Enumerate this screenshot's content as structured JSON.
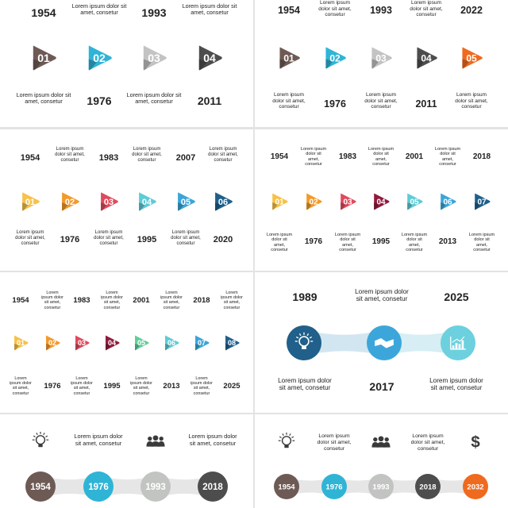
{
  "lorem": "Lorem ipsum dolor sit amet, consetur",
  "colors": {
    "brown": "#6e5a55",
    "cyan": "#2fb4d6",
    "silver": "#c2c4c2",
    "charcoal": "#4d4d4d",
    "orange": "#ef6a1e",
    "yellow": "#f7c14a",
    "amber": "#f39a2b",
    "crimson": "#e04a5c",
    "teal": "#5fcbd6",
    "sky": "#3ba5d8",
    "navy": "#1f5f8b",
    "maroon": "#8e1b3d",
    "green": "#5fcf9a",
    "navy_circle": "#20608a",
    "cyan_circle": "#3ca6db",
    "ice_circle": "#6dd0de"
  },
  "panels": [
    {
      "id": "p1",
      "type": "arrows",
      "count": 4,
      "items": [
        {
          "label": "01",
          "year": "1954",
          "color": "#6e5a55"
        },
        {
          "label": "02",
          "year": "1976",
          "color": "#2fb4d6"
        },
        {
          "label": "03",
          "year": "1993",
          "color": "#c2c4c2"
        },
        {
          "label": "04",
          "year": "2011",
          "color": "#4d4d4d"
        }
      ]
    },
    {
      "id": "p2",
      "type": "arrows",
      "count": 5,
      "items": [
        {
          "label": "01",
          "year": "1954",
          "color": "#6e5a55"
        },
        {
          "label": "02",
          "year": "1976",
          "color": "#2fb4d6"
        },
        {
          "label": "03",
          "year": "1993",
          "color": "#c2c4c2"
        },
        {
          "label": "04",
          "year": "2011",
          "color": "#4d4d4d"
        },
        {
          "label": "05",
          "year": "2022",
          "color": "#ef6a1e"
        }
      ]
    },
    {
      "id": "p3",
      "type": "arrows",
      "count": 6,
      "items": [
        {
          "label": "01",
          "year": "1954",
          "color": "#f7c14a"
        },
        {
          "label": "02",
          "year": "1976",
          "color": "#f39a2b"
        },
        {
          "label": "03",
          "year": "1983",
          "color": "#e04a5c"
        },
        {
          "label": "04",
          "year": "1995",
          "color": "#5fcbd6"
        },
        {
          "label": "05",
          "year": "2007",
          "color": "#3ba5d8"
        },
        {
          "label": "06",
          "year": "2020",
          "color": "#1f5f8b"
        }
      ]
    },
    {
      "id": "p4",
      "type": "arrows",
      "count": 7,
      "items": [
        {
          "label": "01",
          "year": "1954",
          "color": "#f7c14a"
        },
        {
          "label": "02",
          "year": "1976",
          "color": "#f39a2b"
        },
        {
          "label": "03",
          "year": "1983",
          "color": "#e04a5c"
        },
        {
          "label": "04",
          "year": "1995",
          "color": "#8e1b3d"
        },
        {
          "label": "05",
          "year": "2001",
          "color": "#5fcbd6"
        },
        {
          "label": "06",
          "year": "2013",
          "color": "#3ba5d8"
        },
        {
          "label": "07",
          "year": "2018",
          "color": "#1f5f8b"
        }
      ]
    },
    {
      "id": "p5",
      "type": "arrows",
      "count": 8,
      "items": [
        {
          "label": "01",
          "year": "1954",
          "color": "#f7c14a"
        },
        {
          "label": "02",
          "year": "1976",
          "color": "#f39a2b"
        },
        {
          "label": "03",
          "year": "1983",
          "color": "#e04a5c"
        },
        {
          "label": "04",
          "year": "1995",
          "color": "#8e1b3d"
        },
        {
          "label": "05",
          "year": "2001",
          "color": "#5fcf9a"
        },
        {
          "label": "06",
          "year": "2013",
          "color": "#5fcbd6"
        },
        {
          "label": "07",
          "year": "2018",
          "color": "#3ba5d8"
        },
        {
          "label": "08",
          "year": "2025",
          "color": "#1f5f8b"
        }
      ]
    },
    {
      "id": "p6",
      "type": "circles-icons",
      "items": [
        {
          "year": "1989",
          "icon": "lightbulb-icon",
          "color": "#20608a"
        },
        {
          "year": "2017",
          "icon": "handshake-icon",
          "color": "#3ca6db"
        },
        {
          "year": "2025",
          "icon": "bar-chart-icon",
          "color": "#6dd0de"
        }
      ]
    },
    {
      "id": "p7",
      "type": "circles-years",
      "items": [
        {
          "year": "1954",
          "color": "#6e5a55",
          "icon": "lightbulb-icon"
        },
        {
          "year": "1976",
          "color": "#2fb4d6",
          "icon": ""
        },
        {
          "year": "1993",
          "color": "#c2c4c2",
          "icon": "users-icon"
        },
        {
          "year": "2018",
          "color": "#4d4d4d",
          "icon": ""
        }
      ]
    },
    {
      "id": "p8",
      "type": "circles-years",
      "items": [
        {
          "year": "1954",
          "color": "#6e5a55",
          "icon": "lightbulb-icon"
        },
        {
          "year": "1976",
          "color": "#2fb4d6",
          "icon": ""
        },
        {
          "year": "1993",
          "color": "#c2c4c2",
          "icon": "users-icon"
        },
        {
          "year": "2018",
          "color": "#4d4d4d",
          "icon": ""
        },
        {
          "year": "2032",
          "color": "#ef6a1e",
          "icon": "dollar-icon"
        }
      ]
    }
  ]
}
